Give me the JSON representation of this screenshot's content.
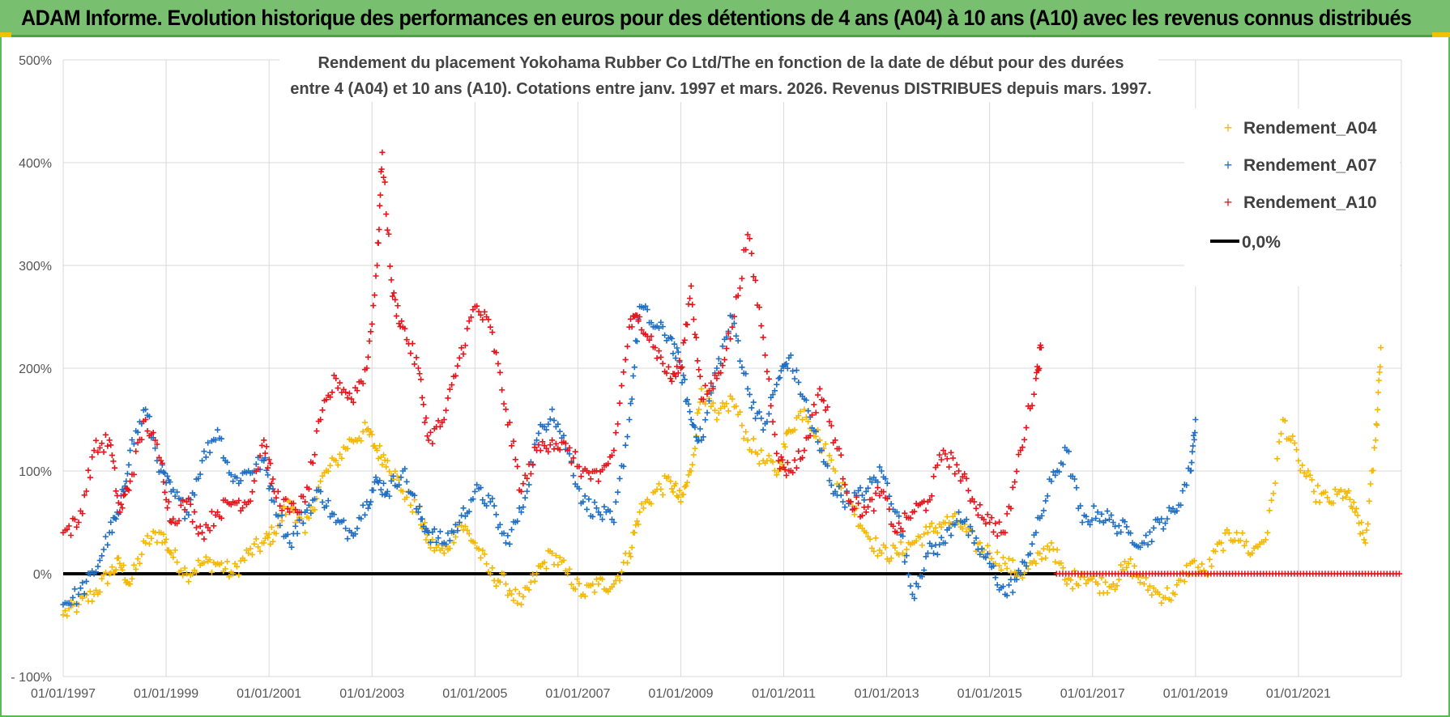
{
  "header": {
    "banner_title": "ADAM Informe. Evolution historique des performances en euros pour des détentions de 4 ans (A04) à 10 ans (A10) avec les revenus connus distribués"
  },
  "colors": {
    "banner_bg": "#78c070",
    "A04": "#f5b800",
    "A07": "#1f6fc4",
    "A10": "#e8141c",
    "zero": "#000000"
  },
  "chart_data": {
    "type": "scatter",
    "title_line1": "Rendement du placement Yokohama Rubber Co Ltd/The en fonction de la date de début pour des durées",
    "title_line2": "entre 4 (A04) et 10 ans (A10). Cotations entre janv. 1997 et mars. 2026. Revenus DISTRIBUES depuis mars. 1997.",
    "y_ticks": [
      "500%",
      "400%",
      "300%",
      "200%",
      "100%",
      "0%",
      "- 100%"
    ],
    "ylim": [
      -100,
      500
    ],
    "x_ticks": [
      "01/01/1997",
      "01/01/1999",
      "01/01/2001",
      "01/01/2003",
      "01/01/2005",
      "01/01/2007",
      "01/01/2009",
      "01/01/2011",
      "01/01/2013",
      "01/01/2015",
      "01/01/2017",
      "01/01/2019",
      "01/01/2021"
    ],
    "xlim": [
      1997.0,
      2023.0
    ],
    "grid": true,
    "legend_position": "top-right",
    "legend": [
      "Rendement_A04",
      "Rendement_A07",
      "Rendement_A10",
      "0,0%"
    ],
    "series": [
      {
        "name": "Rendement_A04",
        "color": "#f5b800",
        "x": [
          1997.0,
          1997.3,
          1997.6,
          1997.9,
          1998.1,
          1998.3,
          1998.6,
          1998.9,
          1999.1,
          1999.4,
          1999.7,
          2000.0,
          2000.3,
          2000.6,
          2000.9,
          2001.1,
          2001.4,
          2001.7,
          2002.0,
          2002.3,
          2002.6,
          2002.9,
          2003.1,
          2003.3,
          2003.6,
          2003.9,
          2004.1,
          2004.4,
          2004.7,
          2005.0,
          2005.3,
          2005.6,
          2005.9,
          2006.2,
          2006.5,
          2006.8,
          2007.1,
          2007.4,
          2007.7,
          2008.0,
          2008.2,
          2008.5,
          2008.8,
          2009.0,
          2009.2,
          2009.4,
          2009.7,
          2010.0,
          2010.3,
          2010.6,
          2010.9,
          2011.1,
          2011.4,
          2011.7,
          2012.0,
          2012.3,
          2012.6,
          2012.9,
          2013.2,
          2013.5,
          2013.8,
          2014.1,
          2014.4,
          2014.7,
          2015.0,
          2015.3,
          2015.6,
          2015.9,
          2016.2,
          2016.5,
          2016.8,
          2017.1,
          2017.4,
          2017.7,
          2018.0,
          2018.3,
          2018.6,
          2018.9,
          2019.2,
          2019.5,
          2019.8,
          2020.1,
          2020.4,
          2020.7,
          2021.0,
          2021.3,
          2021.6,
          2021.9,
          2022.1,
          2022.3,
          2022.5,
          2022.6
        ],
        "y": [
          -40,
          -30,
          -20,
          0,
          10,
          -10,
          30,
          40,
          20,
          0,
          10,
          10,
          0,
          20,
          30,
          40,
          70,
          40,
          90,
          110,
          130,
          140,
          120,
          110,
          80,
          60,
          30,
          20,
          50,
          30,
          0,
          -10,
          -30,
          0,
          20,
          0,
          -20,
          -10,
          -10,
          20,
          60,
          80,
          90,
          70,
          100,
          180,
          150,
          170,
          130,
          110,
          100,
          140,
          160,
          130,
          100,
          70,
          40,
          20,
          20,
          30,
          40,
          50,
          50,
          30,
          20,
          10,
          0,
          10,
          30,
          -10,
          0,
          -10,
          -10,
          10,
          -10,
          -20,
          -20,
          10,
          0,
          30,
          40,
          20,
          40,
          150,
          110,
          80,
          70,
          80,
          60,
          30,
          130,
          220
        ]
      },
      {
        "name": "Rendement_A07",
        "color": "#1f6fc4",
        "x": [
          1997.0,
          1997.3,
          1997.6,
          1997.9,
          1998.1,
          1998.3,
          1998.6,
          1998.9,
          1999.1,
          1999.4,
          1999.7,
          2000.0,
          2000.3,
          2000.6,
          2000.9,
          2001.1,
          2001.4,
          2001.7,
          2002.0,
          2002.3,
          2002.6,
          2002.9,
          2003.1,
          2003.3,
          2003.6,
          2003.9,
          2004.1,
          2004.4,
          2004.7,
          2005.0,
          2005.3,
          2005.6,
          2005.9,
          2006.2,
          2006.5,
          2006.8,
          2007.1,
          2007.4,
          2007.7,
          2008.0,
          2008.2,
          2008.5,
          2008.8,
          2009.0,
          2009.2,
          2009.4,
          2009.7,
          2010.0,
          2010.3,
          2010.6,
          2010.9,
          2011.1,
          2011.4,
          2011.7,
          2012.0,
          2012.3,
          2012.6,
          2012.9,
          2013.2,
          2013.5,
          2013.8,
          2014.1,
          2014.4,
          2014.7,
          2015.0,
          2015.3,
          2015.6,
          2015.9,
          2016.2,
          2016.5,
          2016.8,
          2017.1,
          2017.4,
          2017.7,
          2018.0,
          2018.3,
          2018.6,
          2018.9,
          2019.0
        ],
        "y": [
          -30,
          -20,
          0,
          40,
          60,
          120,
          160,
          100,
          80,
          60,
          110,
          140,
          90,
          100,
          110,
          70,
          30,
          60,
          80,
          50,
          40,
          70,
          90,
          80,
          100,
          60,
          40,
          30,
          50,
          80,
          70,
          30,
          60,
          130,
          160,
          120,
          70,
          60,
          50,
          150,
          260,
          240,
          230,
          200,
          150,
          130,
          200,
          250,
          180,
          140,
          190,
          210,
          170,
          120,
          80,
          70,
          80,
          100,
          60,
          -20,
          20,
          30,
          60,
          30,
          10,
          -20,
          0,
          40,
          90,
          120,
          50,
          60,
          50,
          40,
          30,
          50,
          60,
          100,
          150
        ]
      },
      {
        "name": "Rendement_A10",
        "color": "#e8141c",
        "x": [
          1997.0,
          1997.3,
          1997.6,
          1997.9,
          1998.1,
          1998.3,
          1998.6,
          1998.9,
          1999.1,
          1999.4,
          1999.7,
          2000.0,
          2000.3,
          2000.6,
          2000.9,
          2001.1,
          2001.4,
          2001.7,
          2002.0,
          2002.3,
          2002.6,
          2002.9,
          2003.1,
          2003.2,
          2003.4,
          2003.6,
          2003.9,
          2004.1,
          2004.4,
          2004.7,
          2005.0,
          2005.3,
          2005.6,
          2005.9,
          2006.2,
          2006.5,
          2006.8,
          2007.1,
          2007.4,
          2007.7,
          2008.0,
          2008.2,
          2008.5,
          2008.8,
          2009.0,
          2009.2,
          2009.4,
          2009.7,
          2010.0,
          2010.3,
          2010.6,
          2010.9,
          2011.1,
          2011.4,
          2011.7,
          2012.0,
          2012.3,
          2012.6,
          2012.9,
          2013.2,
          2013.5,
          2013.8,
          2014.1,
          2014.4,
          2014.7,
          2015.0,
          2015.3,
          2015.6,
          2015.9,
          2016.0
        ],
        "y": [
          40,
          50,
          120,
          130,
          60,
          90,
          150,
          110,
          50,
          70,
          40,
          60,
          70,
          70,
          130,
          80,
          60,
          70,
          150,
          190,
          170,
          200,
          300,
          410,
          270,
          240,
          200,
          130,
          150,
          210,
          260,
          240,
          160,
          80,
          120,
          130,
          120,
          100,
          90,
          120,
          240,
          250,
          220,
          190,
          200,
          280,
          170,
          190,
          240,
          330,
          230,
          110,
          100,
          120,
          180,
          130,
          70,
          60,
          80,
          40,
          60,
          70,
          120,
          100,
          70,
          50,
          40,
          120,
          190,
          220
        ]
      }
    ],
    "zero_line": {
      "name": "0,0%",
      "color": "#000000",
      "y": 0,
      "x_range": [
        1997.0,
        2016.3
      ]
    },
    "a10_zero_run": {
      "color": "#e8141c",
      "y": 0,
      "x_range": [
        2016.3,
        2023.0
      ]
    }
  }
}
